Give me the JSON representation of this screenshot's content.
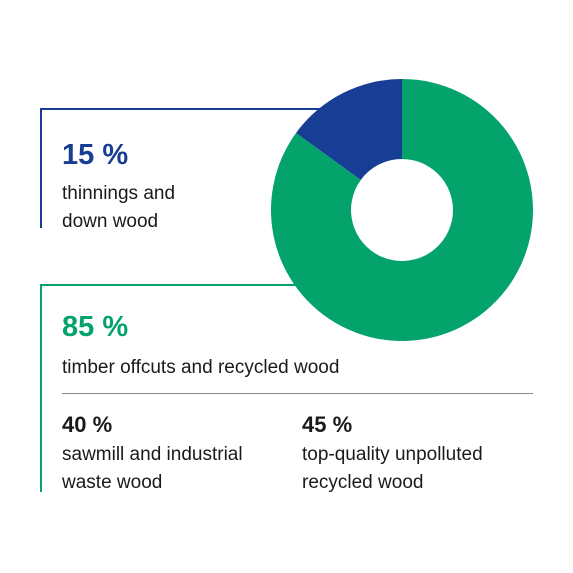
{
  "colors": {
    "green": "#03A36B",
    "blue": "#173D94",
    "text": "#1a1a1a",
    "divider": "#888888"
  },
  "chart_data": {
    "type": "pie",
    "variant": "donut",
    "categories": [
      "thinnings and down wood",
      "timber offcuts and recycled wood"
    ],
    "values": [
      15,
      85
    ],
    "unit": "%",
    "colors": [
      "#173D94",
      "#03A36B"
    ],
    "title": ""
  },
  "callouts": {
    "thinnings": {
      "percent": "15 %",
      "line1": "thinnings and",
      "line2": "down wood"
    },
    "offcuts": {
      "percent": "85 %",
      "label": "timber offcuts and recycled wood"
    },
    "sawmill": {
      "percent": "40 %",
      "line1": "sawmill and industrial",
      "line2": "waste wood"
    },
    "recycled": {
      "percent": "45 %",
      "line1": "top-quality unpolluted",
      "line2": "recycled wood"
    }
  }
}
